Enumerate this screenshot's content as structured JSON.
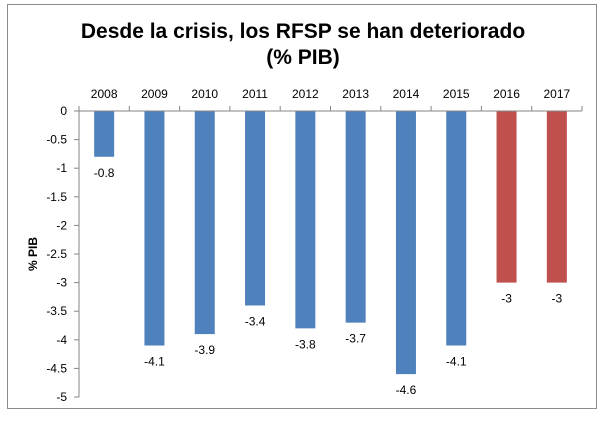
{
  "chart_data": {
    "type": "bar",
    "title_lines": [
      "Desde la crisis, los RFSP se han deteriorado",
      "(% PIB)"
    ],
    "ylabel": "% PIB",
    "xlabel": "",
    "categories": [
      "2008",
      "2009",
      "2010",
      "2011",
      "2012",
      "2013",
      "2014",
      "2015",
      "2016",
      "2017"
    ],
    "values": [
      -0.8,
      -4.1,
      -3.9,
      -3.4,
      -3.8,
      -3.7,
      -4.6,
      -4.1,
      -3,
      -3
    ],
    "value_labels": [
      "-0.8",
      "-4.1",
      "-3.9",
      "-3.4",
      "-3.8",
      "-3.7",
      "-4.6",
      "-4.1",
      "-3",
      "-3"
    ],
    "bar_colors": [
      "#4f81bd",
      "#4f81bd",
      "#4f81bd",
      "#4f81bd",
      "#4f81bd",
      "#4f81bd",
      "#4f81bd",
      "#4f81bd",
      "#c0504d",
      "#c0504d"
    ],
    "ylim": [
      -5,
      0
    ],
    "yticks": [
      0,
      -0.5,
      -1,
      -1.5,
      -2,
      -2.5,
      -3,
      -3.5,
      -4,
      -4.5,
      -5
    ],
    "ytick_labels": [
      "0",
      "-0.5",
      "-1",
      "-1.5",
      "-2",
      "-2.5",
      "-3",
      "-3.5",
      "-4",
      "-4.5",
      "-5"
    ],
    "x_axis_position": "top",
    "grid": false,
    "legend": "none"
  }
}
